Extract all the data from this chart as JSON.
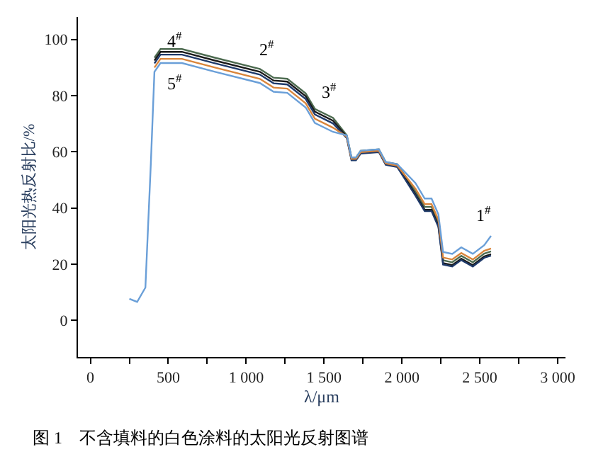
{
  "chart_data": {
    "type": "line",
    "title": "图 1　不含填料的白色涂料的太阳光反射图谱",
    "xlabel": "λ/μm",
    "ylabel": "太阳光热反射比/%",
    "x": [
      250,
      300,
      353,
      388,
      411,
      450,
      588,
      800,
      1088,
      1176,
      1264,
      1382,
      1441,
      1558,
      1646,
      1676,
      1705,
      1735,
      1852,
      1896,
      1970,
      2087,
      2146,
      2190,
      2234,
      2264,
      2323,
      2381,
      2455,
      2528,
      2572
    ],
    "series": [
      {
        "name": "2$^{#}$",
        "color": "#4d6b50",
        "values": [
          null,
          null,
          null,
          null,
          93.5,
          96.6,
          96.6,
          93.5,
          89.5,
          86.4,
          86,
          80.8,
          75.3,
          72.1,
          65.9,
          58,
          58,
          60.4,
          60.9,
          56.4,
          55.6,
          45.9,
          40.4,
          40.4,
          34.8,
          21.4,
          20.7,
          23,
          20.7,
          23.8,
          24.6
        ]
      },
      {
        "name": "3$^{#}$",
        "color": "#1a1a1a",
        "values": [
          null,
          null,
          null,
          null,
          92.5,
          95.6,
          95.6,
          92.5,
          88.5,
          85.4,
          85,
          79.8,
          74.3,
          71.1,
          65.4,
          57.5,
          57.5,
          59.9,
          60.4,
          55.9,
          55.1,
          44.9,
          39.4,
          39.4,
          33.8,
          20.4,
          19.7,
          22,
          19.7,
          22.8,
          23.6
        ]
      },
      {
        "name": "4$^{#}$",
        "color": "#1f3a6a",
        "values": [
          null,
          null,
          null,
          null,
          91.5,
          94.6,
          94.6,
          91.5,
          87.5,
          84.4,
          84,
          78.8,
          73.3,
          70.1,
          64.9,
          57,
          57,
          59.4,
          59.9,
          55.4,
          54.6,
          44.4,
          38.9,
          38.9,
          33.3,
          19.9,
          19.2,
          21.5,
          19.2,
          22.3,
          23.1
        ]
      },
      {
        "name": "5$^{#}$",
        "color": "#d9853b",
        "values": [
          null,
          null,
          null,
          null,
          90,
          93.1,
          93.1,
          90,
          86,
          82.9,
          82.5,
          77.3,
          71.8,
          68.6,
          65.4,
          57.5,
          57.5,
          59.9,
          60.4,
          55.9,
          55.1,
          46.9,
          41.4,
          41.4,
          35.8,
          22.4,
          21.7,
          24,
          21.7,
          24.8,
          25.6
        ]
      },
      {
        "name": "1$^{#}$",
        "color": "#6a9fd8",
        "values": [
          7.7,
          6.6,
          11.7,
          56,
          88.5,
          91.6,
          91.6,
          88.5,
          84.5,
          81.4,
          81,
          75.8,
          70.3,
          67.1,
          65.9,
          58,
          58,
          60.4,
          60.9,
          56.4,
          55.6,
          48.9,
          43.4,
          43.4,
          37.8,
          24.4,
          23.7,
          26,
          23.7,
          26.8,
          30.1
        ]
      }
    ],
    "xlim": [
      -80,
      3050
    ],
    "xticks": [
      0,
      {
        "value": 250,
        "label": null
      },
      500,
      {
        "value": 750,
        "label": null
      },
      {
        "value": 1000,
        "label": "1 000"
      },
      {
        "value": 1250,
        "label": null
      },
      {
        "value": 1500,
        "label": "1 500"
      },
      {
        "value": 1750,
        "label": null
      },
      {
        "value": 2000,
        "label": "2 000"
      },
      {
        "value": 2250,
        "label": null
      },
      {
        "value": 2500,
        "label": "2 500"
      },
      {
        "value": 2750,
        "label": null
      },
      {
        "value": 3000,
        "label": "3 000"
      }
    ],
    "ylim": [
      -13,
      108
    ],
    "yticks": [
      0,
      20,
      40,
      60,
      80,
      100
    ],
    "legend": false,
    "marker": "none",
    "line_style": "solid"
  }
}
